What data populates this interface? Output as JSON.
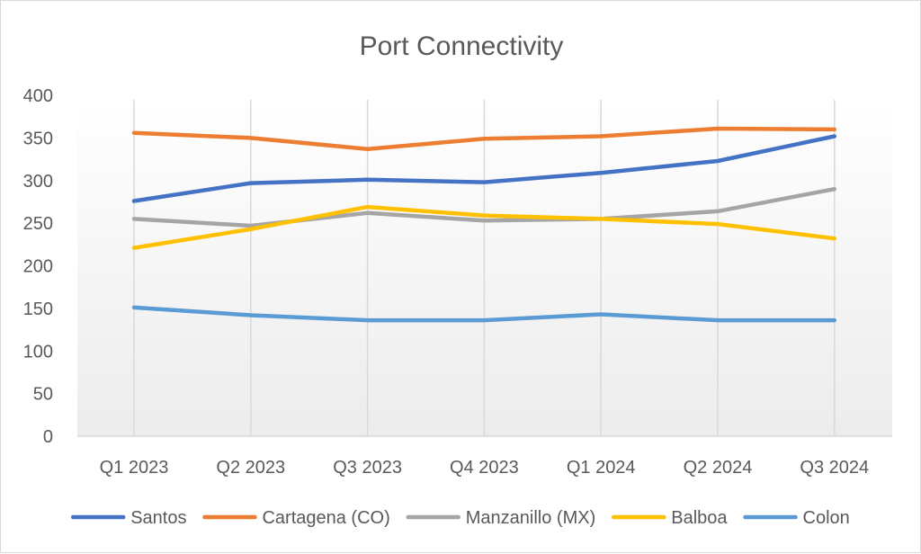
{
  "chart_data": {
    "type": "line",
    "title": "Port Connectivity",
    "categories": [
      "Q1 2023",
      "Q2 2023",
      "Q3 2023",
      "Q4 2023",
      "Q1 2024",
      "Q2 2024",
      "Q3 2024"
    ],
    "ylim": [
      0,
      400
    ],
    "yticks": [
      0,
      50,
      100,
      150,
      200,
      250,
      300,
      350,
      400
    ],
    "grid": "vertical",
    "legend_position": "bottom",
    "series": [
      {
        "name": "Santos",
        "color": "#4472c4",
        "values": [
          276,
          297,
          301,
          298,
          309,
          323,
          352
        ]
      },
      {
        "name": "Cartagena (CO)",
        "color": "#ed7d31",
        "values": [
          356,
          350,
          337,
          349,
          352,
          361,
          360
        ]
      },
      {
        "name": "Manzanillo (MX)",
        "color": "#a5a5a5",
        "values": [
          255,
          247,
          262,
          253,
          255,
          264,
          290
        ]
      },
      {
        "name": "Balboa",
        "color": "#ffc000",
        "values": [
          221,
          243,
          269,
          259,
          255,
          249,
          232
        ]
      },
      {
        "name": "Colon",
        "color": "#5b9bd5",
        "values": [
          151,
          142,
          136,
          136,
          143,
          136,
          136
        ]
      }
    ]
  }
}
